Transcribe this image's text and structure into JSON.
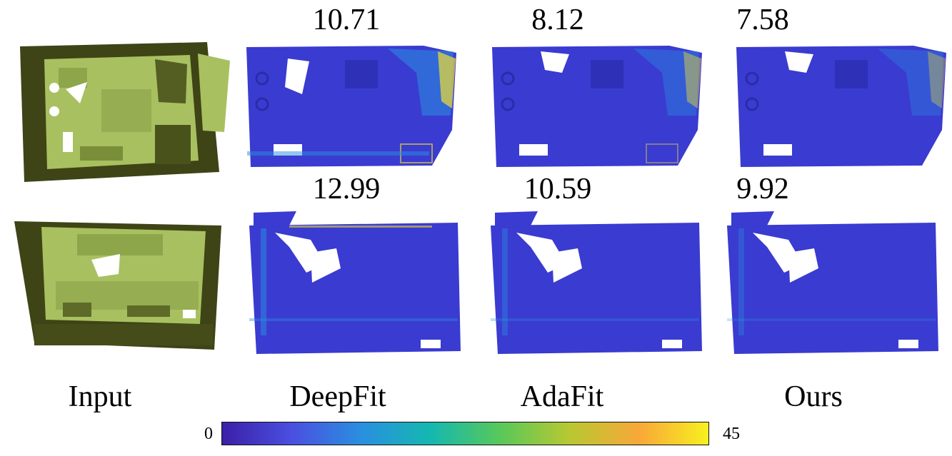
{
  "figure": {
    "row1_scores": [
      "10.71",
      "8.12",
      "7.58"
    ],
    "row2_scores": [
      "12.99",
      "10.59",
      "9.92"
    ],
    "column_labels": [
      "Input",
      "DeepFit",
      "AdaFit",
      "Ours"
    ],
    "colorbar": {
      "min_label": "0",
      "max_label": "45",
      "colormap": [
        "#3b1fa8",
        "#4a4fe0",
        "#2a8fe0",
        "#14b8b0",
        "#58c85a",
        "#b8c832",
        "#f8a838",
        "#f8f020"
      ]
    },
    "colors": {
      "input_face": "#a8c060",
      "input_wall": "#3e4416",
      "error_base": "#3a3bd0",
      "error_mid": "#2a8fe0",
      "error_high": "#f0e030"
    },
    "icons": [
      "input-scene-mesh",
      "error-heatmap-scene"
    ]
  }
}
